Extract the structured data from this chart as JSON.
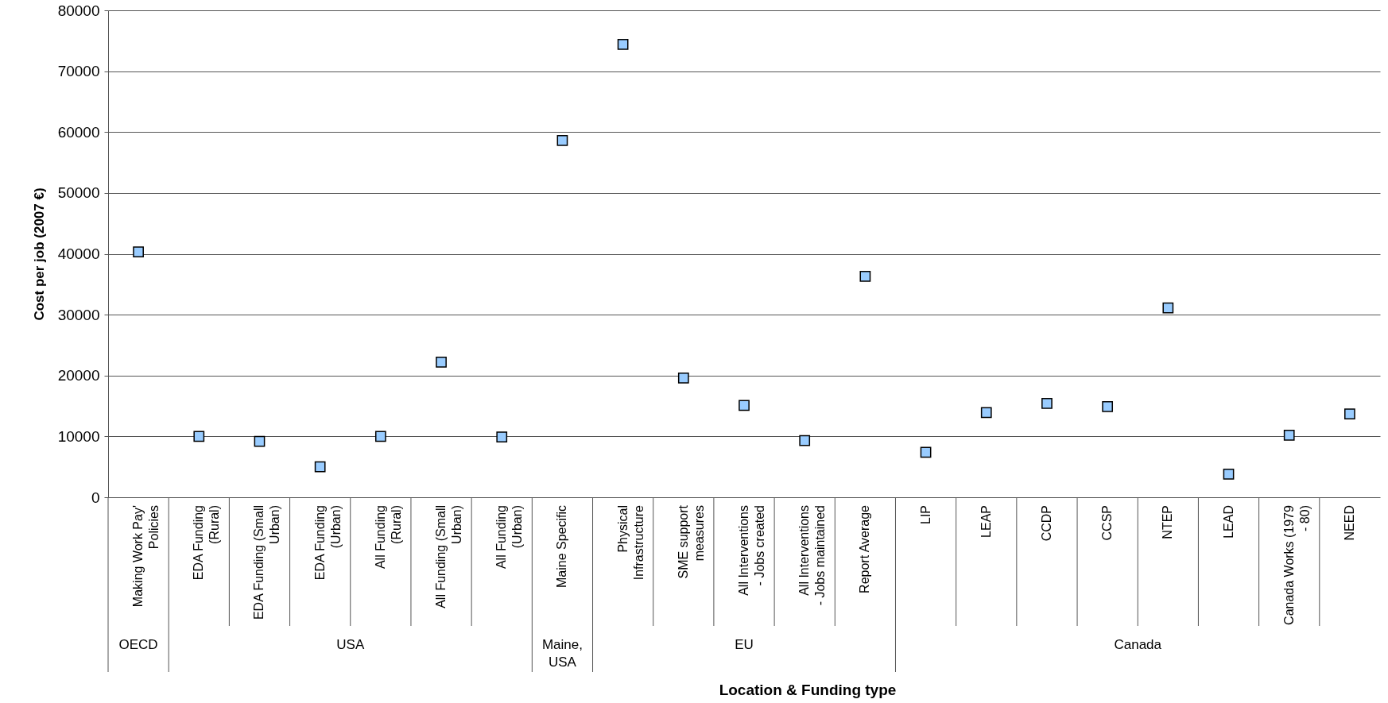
{
  "chart_data": {
    "type": "scatter",
    "xlabel": "Location & Funding type",
    "ylabel": "Cost per job (2007 €)",
    "categories": [
      "Making Work Pay' Policies",
      "EDA Funding (Rural)",
      "EDA Funding (Small Urban)",
      "EDA Funding (Urban)",
      "All Funding (Rural)",
      "All Funding (Small Urban)",
      "All Funding (Urban)",
      "Maine Specific",
      "Physical Infrastructure",
      "SME support measures",
      "All Interventions - Jobs created",
      "All Interventions - Jobs maintained",
      "Report Average",
      "LIP",
      "LEAP",
      "CCDP",
      "CCSP",
      "NTEP",
      "LEAD",
      "Canada Works (1979 - 80)",
      "NEED"
    ],
    "series": [
      {
        "color": "#99ccff",
        "values": [
          40300,
          10000,
          9200,
          5000,
          10000,
          22200,
          9900,
          58600,
          74400,
          19600,
          15100,
          9300,
          36300,
          7400,
          13900,
          15400,
          14900,
          31100,
          3800,
          10200,
          13700
        ]
      }
    ],
    "annotations": [
      "OECD",
      "USA",
      "Maine, USA",
      "EU",
      "Canada"
    ],
    "ylim": [
      0,
      80000
    ],
    "yticks": [
      0,
      10000,
      20000,
      30000,
      40000,
      50000,
      60000,
      70000,
      80000
    ],
    "grid": "y",
    "legend": false,
    "marker": "square"
  }
}
